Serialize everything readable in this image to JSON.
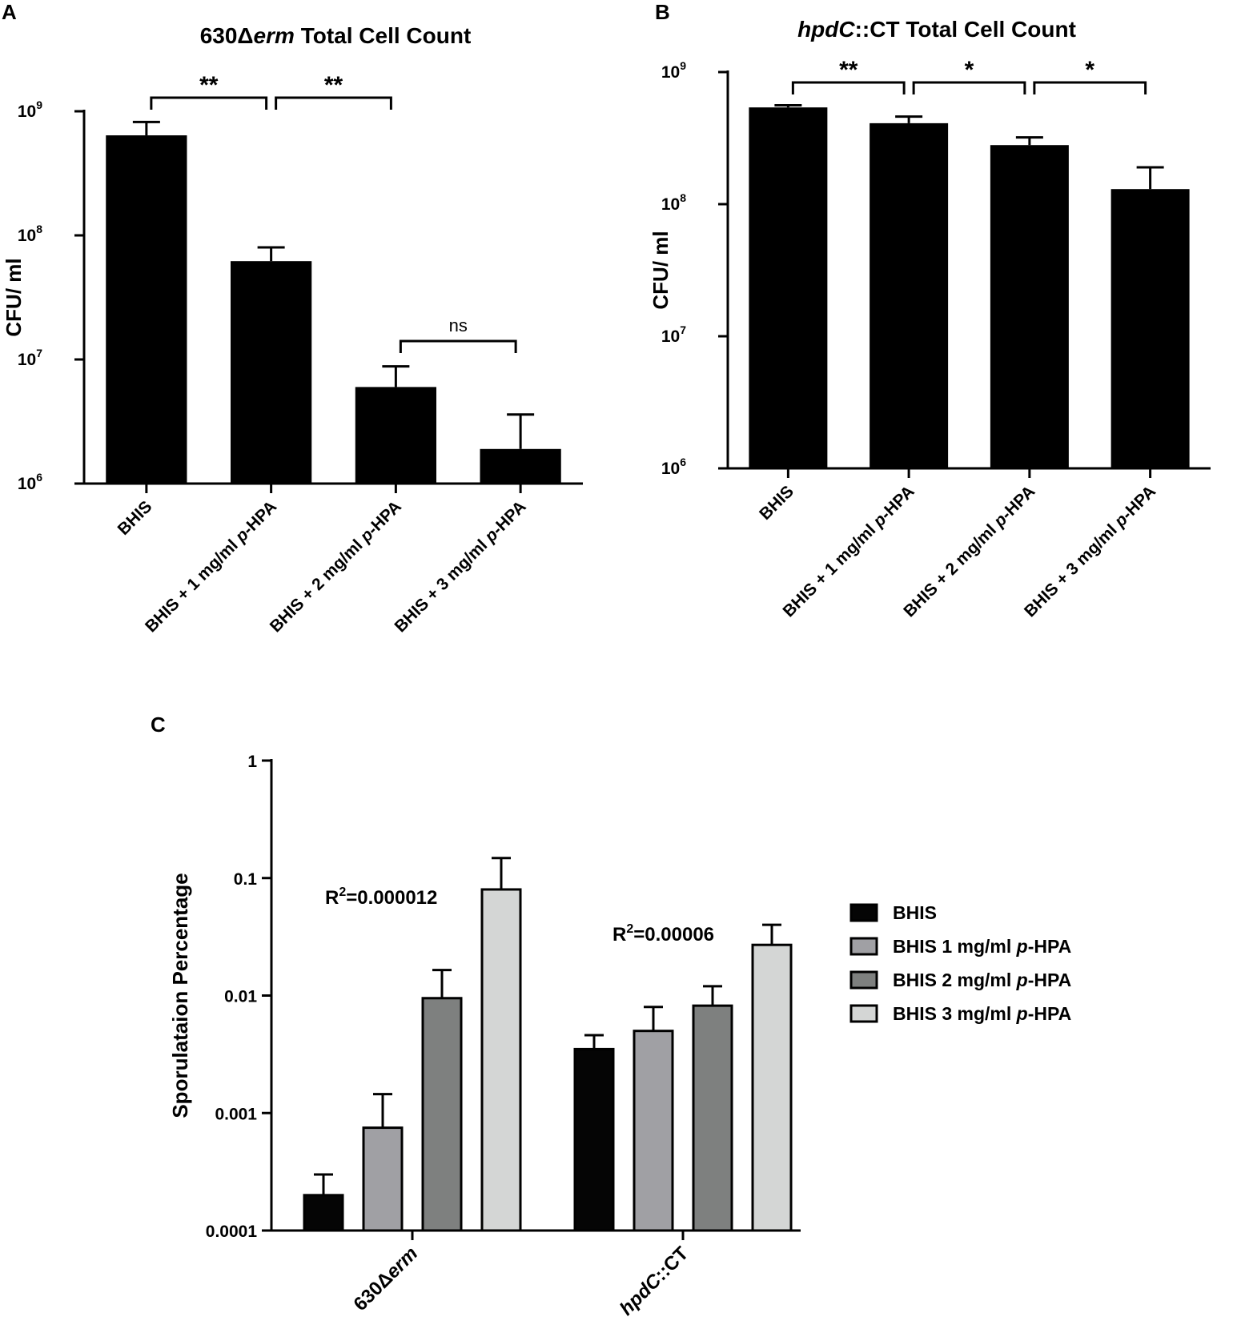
{
  "chart_data": [
    {
      "panel": "A",
      "type": "bar",
      "title_parts": [
        {
          "text": "630Δ",
          "italic": false
        },
        {
          "text": "erm",
          "italic": true
        },
        {
          "text": " Total Cell Count",
          "italic": false
        }
      ],
      "ylabel": "CFU/ ml",
      "yscale": "log",
      "ylim": [
        1000000,
        1000000000
      ],
      "yticks": [
        {
          "value": 1000000,
          "base": "10",
          "exp": "6"
        },
        {
          "value": 10000000,
          "base": "10",
          "exp": "7"
        },
        {
          "value": 100000000,
          "base": "10",
          "exp": "8"
        },
        {
          "value": 1000000000,
          "base": "10",
          "exp": "9"
        }
      ],
      "categories": [
        [
          {
            "text": "BHIS",
            "italic": false
          }
        ],
        [
          {
            "text": "BHIS + 1 mg/ml ",
            "italic": false
          },
          {
            "text": "p",
            "italic": true
          },
          {
            "text": "-HPA",
            "italic": false
          }
        ],
        [
          {
            "text": "BHIS + 2 mg/ml ",
            "italic": false
          },
          {
            "text": "p",
            "italic": true
          },
          {
            "text": "-HPA",
            "italic": false
          }
        ],
        [
          {
            "text": "BHIS + 3 mg/ml ",
            "italic": false
          },
          {
            "text": "p",
            "italic": true
          },
          {
            "text": "-HPA",
            "italic": false
          }
        ]
      ],
      "values": [
        640000000,
        62000000,
        6000000,
        1900000
      ],
      "errors_upper": [
        820000000,
        80000000,
        8800000,
        3600000
      ],
      "bar_color": "#000000",
      "significance": [
        {
          "from": 0,
          "to": 1,
          "label": "**"
        },
        {
          "from": 1,
          "to": 2,
          "label": "**"
        },
        {
          "from": 2,
          "to": 3,
          "label": "ns"
        }
      ]
    },
    {
      "panel": "B",
      "type": "bar",
      "title_parts": [
        {
          "text": "hpdC",
          "italic": true
        },
        {
          "text": "::CT Total Cell Count",
          "italic": false
        }
      ],
      "ylabel": "CFU/ ml",
      "yscale": "log",
      "ylim": [
        1000000,
        1000000000
      ],
      "yticks": [
        {
          "value": 1000000,
          "base": "10",
          "exp": "6"
        },
        {
          "value": 10000000,
          "base": "10",
          "exp": "7"
        },
        {
          "value": 100000000,
          "base": "10",
          "exp": "8"
        },
        {
          "value": 1000000000,
          "base": "10",
          "exp": "9"
        }
      ],
      "categories": [
        [
          {
            "text": "BHIS",
            "italic": false
          }
        ],
        [
          {
            "text": "BHIS + 1 mg/ml ",
            "italic": false
          },
          {
            "text": "p",
            "italic": true
          },
          {
            "text": "-HPA",
            "italic": false
          }
        ],
        [
          {
            "text": "BHIS + 2 mg/ml ",
            "italic": false
          },
          {
            "text": "p",
            "italic": true
          },
          {
            "text": "-HPA",
            "italic": false
          }
        ],
        [
          {
            "text": "BHIS + 3 mg/ml ",
            "italic": false
          },
          {
            "text": "p",
            "italic": true
          },
          {
            "text": "-HPA",
            "italic": false
          }
        ]
      ],
      "values": [
        540000000,
        410000000,
        280000000,
        130000000
      ],
      "errors_upper": [
        560000000,
        460000000,
        320000000,
        190000000
      ],
      "bar_color": "#000000",
      "significance": [
        {
          "from": 0,
          "to": 1,
          "label": "**"
        },
        {
          "from": 1,
          "to": 2,
          "label": "*"
        },
        {
          "from": 2,
          "to": 3,
          "label": "*"
        }
      ]
    },
    {
      "panel": "C",
      "type": "bar",
      "ylabel": "Sporulataion Percentage",
      "yscale": "log",
      "ylim": [
        0.0001,
        1
      ],
      "yticks": [
        "0.0001",
        "0.001",
        "0.01",
        "0.1",
        "1"
      ],
      "groups": [
        [
          {
            "text": "630Δ",
            "italic": false
          },
          {
            "text": "erm",
            "italic": true
          }
        ],
        [
          {
            "text": "hpdC",
            "italic": true
          },
          {
            "text": "::CT",
            "italic": false
          }
        ]
      ],
      "series": [
        {
          "name_parts": [
            {
              "text": "BHIS",
              "italic": false
            }
          ],
          "color": "#050505",
          "values": [
            0.0002,
            0.0035
          ],
          "errors_upper": [
            0.0003,
            0.0046
          ]
        },
        {
          "name_parts": [
            {
              "text": "BHIS 1 mg/ml ",
              "italic": false
            },
            {
              "text": "p",
              "italic": true
            },
            {
              "text": "-HPA",
              "italic": false
            }
          ],
          "color": "#a0a0a4",
          "values": [
            0.00075,
            0.005
          ],
          "errors_upper": [
            0.00145,
            0.008
          ]
        },
        {
          "name_parts": [
            {
              "text": "BHIS 2 mg/ml ",
              "italic": false
            },
            {
              "text": "p",
              "italic": true
            },
            {
              "text": "-HPA",
              "italic": false
            }
          ],
          "color": "#7e807f",
          "values": [
            0.0095,
            0.0082
          ],
          "errors_upper": [
            0.0165,
            0.012
          ]
        },
        {
          "name_parts": [
            {
              "text": "BHIS 3 mg/ml ",
              "italic": false
            },
            {
              "text": "p",
              "italic": true
            },
            {
              "text": "-HPA",
              "italic": false
            }
          ],
          "color": "#d4d6d5",
          "values": [
            0.08,
            0.027
          ],
          "errors_upper": [
            0.148,
            0.04
          ]
        }
      ],
      "annotations": [
        {
          "group": 0,
          "base": "R",
          "sup": "2",
          "rest": "=0.000012"
        },
        {
          "group": 1,
          "base": "R",
          "sup": "2",
          "rest": "=0.00006"
        }
      ],
      "legend_position": "right"
    }
  ]
}
